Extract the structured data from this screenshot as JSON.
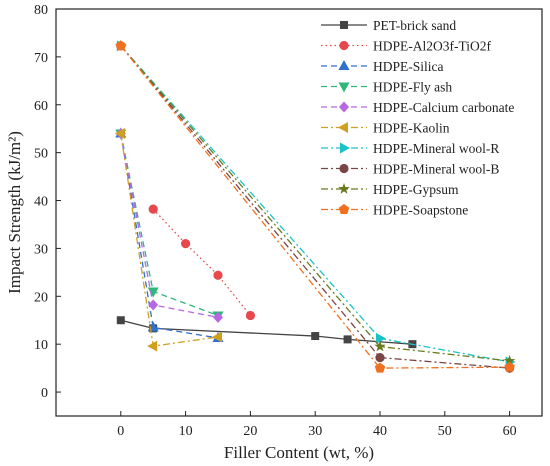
{
  "chart_data": {
    "type": "line",
    "xlabel": "Filler Content (wt, %)",
    "ylabel": "Impact Strength (kJ/m²)",
    "xlim": [
      -10,
      65
    ],
    "ylim": [
      -5,
      80
    ],
    "xticks": [
      0,
      10,
      20,
      30,
      40,
      50,
      60
    ],
    "yticks": [
      0,
      10,
      20,
      30,
      40,
      50,
      60,
      70,
      80
    ],
    "grid": false,
    "legend_position": "top-right",
    "series": [
      {
        "name": "PET-brick sand",
        "color": "#444444",
        "marker": "square",
        "dash": "solid",
        "x": [
          0,
          5,
          30,
          35,
          45
        ],
        "y": [
          15,
          13.3,
          11.7,
          11,
          10
        ]
      },
      {
        "name": "HDPE-Al2O3f-TiO2f",
        "color": "#e8474b",
        "marker": "circle",
        "dash": "dot",
        "x": [
          5,
          10,
          15,
          20
        ],
        "y": [
          38.2,
          31,
          24.4,
          16
        ]
      },
      {
        "name": "HDPE-Silica",
        "color": "#2f6fd0",
        "marker": "triangle-up",
        "dash": "dash",
        "x": [
          0,
          5,
          15
        ],
        "y": [
          54,
          13.5,
          11.3
        ]
      },
      {
        "name": "HDPE-Fly ash",
        "color": "#2fb779",
        "marker": "triangle-down",
        "dash": "dash",
        "x": [
          0,
          5,
          15
        ],
        "y": [
          54,
          21,
          16
        ]
      },
      {
        "name": "HDPE-Calcium carbonate",
        "color": "#b767e0",
        "marker": "diamond",
        "dash": "dash",
        "x": [
          0,
          5,
          15
        ],
        "y": [
          54,
          18.2,
          15.6
        ]
      },
      {
        "name": "HDPE-Kaolin",
        "color": "#cfa020",
        "marker": "triangle-left",
        "dash": "dashdot",
        "x": [
          0,
          5,
          15
        ],
        "y": [
          54,
          9.6,
          11.5
        ]
      },
      {
        "name": "HDPE-Mineral wool-R",
        "color": "#1bc3c9",
        "marker": "triangle-right",
        "dash": "dashdot",
        "x": [
          0,
          40,
          60
        ],
        "y": [
          72.3,
          11.2,
          6.3
        ]
      },
      {
        "name": "HDPE-Mineral wool-B",
        "color": "#7a4545",
        "marker": "circle",
        "dash": "dashdot",
        "x": [
          0,
          40,
          60
        ],
        "y": [
          72.3,
          7.2,
          5
        ]
      },
      {
        "name": "HDPE-Gypsum",
        "color": "#6b7a1e",
        "marker": "star",
        "dash": "dashdot",
        "x": [
          0,
          40,
          60
        ],
        "y": [
          72.3,
          9.5,
          6.5
        ]
      },
      {
        "name": "HDPE-Soapstone",
        "color": "#f07020",
        "marker": "pentagon",
        "dash": "dashdot",
        "x": [
          0,
          40,
          60
        ],
        "y": [
          72.3,
          5,
          5.2
        ]
      }
    ]
  }
}
